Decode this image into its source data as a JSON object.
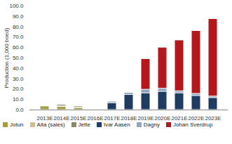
{
  "chart_data": {
    "type": "bar",
    "stacked": true,
    "categories": [
      "2013E",
      "2014E",
      "2015E",
      "2016E",
      "2017E",
      "2018E",
      "2019E",
      "2020E",
      "2021E",
      "2022E",
      "2023E"
    ],
    "series": [
      {
        "name": "Jotun",
        "color": "#a39d45",
        "values": [
          3.5,
          3.0,
          2.0,
          0.5,
          0,
          0,
          0,
          0,
          0,
          0,
          0
        ]
      },
      {
        "name": "Alta (sales)",
        "color": "#cdbf8e",
        "values": [
          0.5,
          0.5,
          0.3,
          0,
          0,
          0,
          0,
          0,
          0,
          0,
          0
        ]
      },
      {
        "name": "Jette",
        "color": "#8a876b",
        "values": [
          0,
          1.5,
          1.2,
          0,
          0,
          0,
          0,
          0,
          0,
          0,
          0
        ]
      },
      {
        "name": "Ivar Aasen",
        "color": "#1f3b60",
        "values": [
          0,
          0,
          0,
          0,
          6.5,
          14.5,
          16.0,
          17.5,
          16.0,
          13.5,
          11.5
        ]
      },
      {
        "name": "Dagny",
        "color": "#8fa6c2",
        "values": [
          0,
          0,
          0,
          0,
          1.5,
          2.0,
          3.5,
          3.0,
          2.0,
          2.0,
          1.5
        ]
      },
      {
        "name": "Johan Sverdrup",
        "color": "#b3191c",
        "values": [
          0,
          0,
          0,
          0,
          0,
          0.5,
          29.5,
          39.5,
          49.0,
          60.5,
          74.5
        ]
      }
    ],
    "y_label": "Production (1,000 boed)",
    "ylim": [
      0,
      100
    ],
    "yticks": [
      {
        "value": 0,
        "label": "0.0"
      },
      {
        "value": 10,
        "label": "10.0"
      },
      {
        "value": 20,
        "label": "20.0"
      },
      {
        "value": 30,
        "label": "30.0"
      },
      {
        "value": 40,
        "label": "40.0"
      },
      {
        "value": 50,
        "label": "50.0"
      },
      {
        "value": 60,
        "label": "60.0"
      },
      {
        "value": 70,
        "label": "70.0"
      },
      {
        "value": 80,
        "label": "80.0"
      },
      {
        "value": 90,
        "label": "90.0"
      },
      {
        "value": 100,
        "label": "100.0"
      }
    ],
    "grid": false,
    "legend": "bottom"
  }
}
